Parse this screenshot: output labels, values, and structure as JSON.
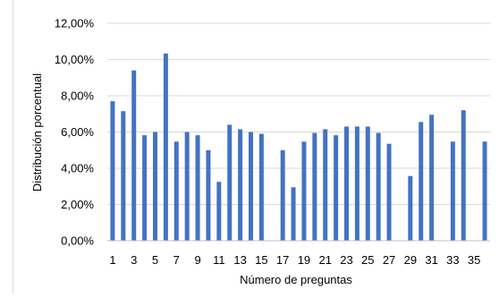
{
  "chart_data": {
    "type": "bar",
    "title": "",
    "xlabel": "Número de preguntas",
    "ylabel": "Distribución porcentual",
    "ylim": [
      0,
      12
    ],
    "y_ticks": [
      "0,00%",
      "2,00%",
      "4,00%",
      "6,00%",
      "8,00%",
      "10,00%",
      "12,00%"
    ],
    "categories": [
      "1",
      "2",
      "3",
      "4",
      "5",
      "6",
      "7",
      "8",
      "9",
      "10",
      "11",
      "12",
      "13",
      "14",
      "15",
      "16",
      "17",
      "18",
      "19",
      "20",
      "21",
      "22",
      "23",
      "24",
      "25",
      "26",
      "27",
      "28",
      "29",
      "30",
      "31",
      "32",
      "33",
      "34",
      "35",
      "36"
    ],
    "x_tick_labels": [
      "1",
      "3",
      "5",
      "7",
      "9",
      "11",
      "13",
      "15",
      "17",
      "19",
      "21",
      "23",
      "25",
      "27",
      "29",
      "31",
      "33",
      "35"
    ],
    "values": [
      7.7,
      7.15,
      9.4,
      5.82,
      6.0,
      10.33,
      5.47,
      6.0,
      5.82,
      5.0,
      3.25,
      6.4,
      6.15,
      6.0,
      5.9,
      0,
      5.0,
      2.95,
      5.47,
      5.95,
      6.15,
      5.82,
      6.3,
      6.3,
      6.3,
      5.95,
      5.35,
      0,
      3.57,
      6.55,
      6.95,
      0,
      5.47,
      7.2,
      0,
      5.47
    ],
    "series_color": "#4472c4",
    "grid": true,
    "legend": "none"
  }
}
